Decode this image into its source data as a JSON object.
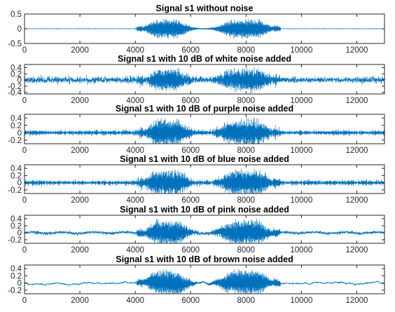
{
  "figure": {
    "background": "#ffffff",
    "line_color": "#0072BD",
    "axis_color": "#262626"
  },
  "chart_data": [
    {
      "type": "line",
      "title": "Signal s1 without noise",
      "xlim": [
        0,
        13000
      ],
      "ylim": [
        -0.5,
        0.5
      ],
      "xticks": [
        "0",
        "2000",
        "4000",
        "6000",
        "8000",
        "10000",
        "12000"
      ],
      "yticks": [
        "0.5",
        "0",
        "-0.5"
      ],
      "ytick_values": [
        0.5,
        0,
        -0.5
      ],
      "series": [
        {
          "name": "s1",
          "noise": "none",
          "noise_level": 0.003,
          "burst_amplitude": 0.35,
          "active_range": [
            4000,
            9200
          ]
        }
      ]
    },
    {
      "type": "line",
      "title": "Signal s1 with 10 dB of white noise added",
      "xlim": [
        0,
        13000
      ],
      "ylim": [
        -0.45,
        0.5
      ],
      "xticks": [
        "0",
        "2000",
        "4000",
        "6000",
        "8000",
        "10000",
        "12000"
      ],
      "yticks": [
        "0.4",
        "0.2",
        "0",
        "-0.2",
        "-0.4"
      ],
      "ytick_values": [
        0.4,
        0.2,
        0,
        -0.2,
        -0.4
      ],
      "series": [
        {
          "name": "s1 + white noise",
          "noise": "white",
          "noise_level": 0.05,
          "burst_amplitude": 0.38,
          "active_range": [
            4000,
            9200
          ]
        }
      ]
    },
    {
      "type": "line",
      "title": "Signal s1 with 10 dB of purple noise added",
      "xlim": [
        0,
        13000
      ],
      "ylim": [
        -0.3,
        0.5
      ],
      "xticks": [
        "0",
        "2000",
        "4000",
        "6000",
        "8000",
        "10000",
        "12000"
      ],
      "yticks": [
        "0.4",
        "0.2",
        "0",
        "-0.2"
      ],
      "ytick_values": [
        0.4,
        0.2,
        0,
        -0.2
      ],
      "series": [
        {
          "name": "s1 + purple noise",
          "noise": "purple",
          "noise_level": 0.035,
          "burst_amplitude": 0.38,
          "active_range": [
            4000,
            9200
          ]
        }
      ]
    },
    {
      "type": "line",
      "title": "Signal s1 with 10 dB of blue noise added",
      "xlim": [
        0,
        13000
      ],
      "ylim": [
        -0.3,
        0.5
      ],
      "xticks": [
        "0",
        "2000",
        "4000",
        "6000",
        "8000",
        "10000",
        "12000"
      ],
      "yticks": [
        "0.4",
        "0.2",
        "0",
        "-0.2"
      ],
      "ytick_values": [
        0.4,
        0.2,
        0,
        -0.2
      ],
      "series": [
        {
          "name": "s1 + blue noise",
          "noise": "blue",
          "noise_level": 0.035,
          "burst_amplitude": 0.38,
          "active_range": [
            4000,
            9200
          ]
        }
      ]
    },
    {
      "type": "line",
      "title": "Signal s1 with 10 dB of pink noise added",
      "xlim": [
        0,
        13000
      ],
      "ylim": [
        -0.3,
        0.5
      ],
      "xticks": [
        "0",
        "2000",
        "4000",
        "6000",
        "8000",
        "10000",
        "12000"
      ],
      "yticks": [
        "0.4",
        "0.2",
        "0",
        "-0.2"
      ],
      "ytick_values": [
        0.4,
        0.2,
        0,
        -0.2
      ],
      "series": [
        {
          "name": "s1 + pink noise",
          "noise": "pink",
          "noise_level": 0.035,
          "burst_amplitude": 0.38,
          "active_range": [
            4000,
            9200
          ]
        }
      ]
    },
    {
      "type": "line",
      "title": "Signal s1 with 10 dB of brown noise added",
      "xlim": [
        0,
        13000
      ],
      "ylim": [
        -0.3,
        0.5
      ],
      "xticks": [
        "0",
        "2000",
        "4000",
        "6000",
        "8000",
        "10000",
        "12000"
      ],
      "yticks": [
        "0.4",
        "0.2",
        "0",
        "-0.2"
      ],
      "ytick_values": [
        0.4,
        0.2,
        0,
        -0.2
      ],
      "series": [
        {
          "name": "s1 + brown noise",
          "noise": "brown",
          "noise_level": 0.03,
          "burst_amplitude": 0.38,
          "active_range": [
            4000,
            9200
          ]
        }
      ]
    }
  ]
}
